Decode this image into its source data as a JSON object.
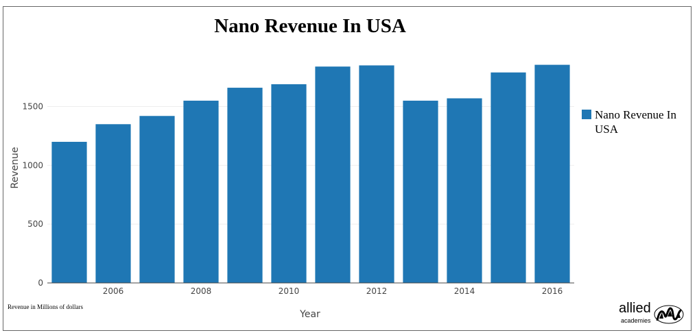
{
  "chart_data": {
    "type": "bar",
    "title": "Nano Revenue In USA",
    "xlabel": "Year",
    "ylabel": "Revenue",
    "x": [
      2005,
      2006,
      2007,
      2008,
      2009,
      2010,
      2011,
      2012,
      2013,
      2014,
      2015,
      2016
    ],
    "series": [
      {
        "name": "Nano Revenue In USA",
        "values": [
          1200,
          1350,
          1420,
          1550,
          1660,
          1690,
          1840,
          1850,
          1550,
          1570,
          1790,
          1855
        ]
      }
    ],
    "xticks": [
      "2006",
      "2008",
      "2010",
      "2012",
      "2014",
      "2016"
    ],
    "yticks": [
      "0",
      "500",
      "1000",
      "1500"
    ],
    "ylim": [
      0,
      1940
    ],
    "grid": true,
    "legend": "right",
    "colors": {
      "bar": "#1f77b4",
      "grid": "#eeeeee",
      "axis": "#444444"
    }
  },
  "legend": {
    "line1": "Nano Revenue In",
    "line2": "USA"
  },
  "note": "Revenue in Millions of dollars",
  "brand": {
    "name": "allied",
    "sub": "academies"
  }
}
